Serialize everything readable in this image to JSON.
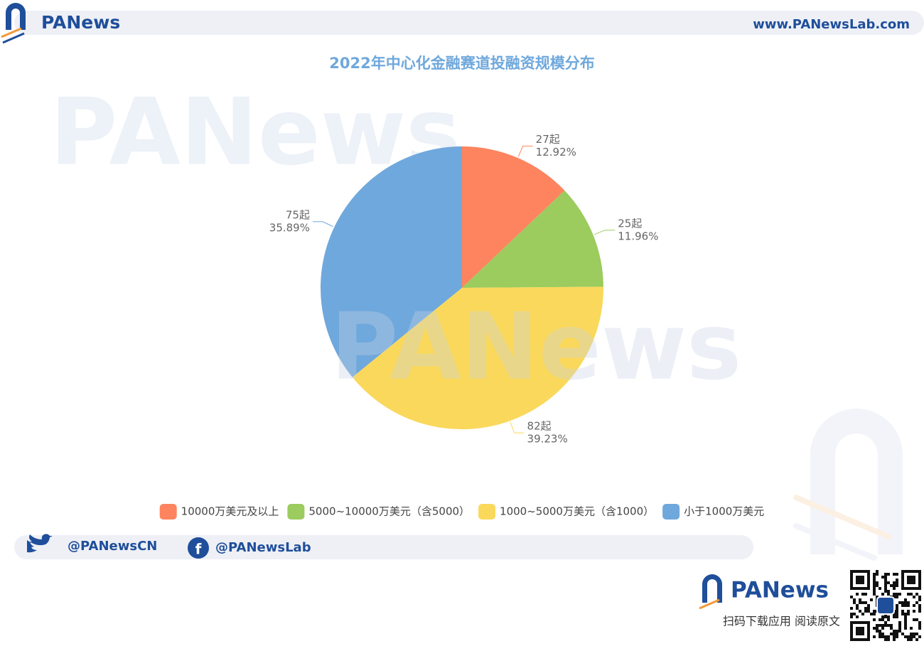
{
  "page": {
    "header_logo": "PANews",
    "url": "www.PANewsLab.com",
    "watermark": "PANews",
    "twitter": "@PANewsCN",
    "facebook": "@PANewsLab",
    "footer_logo": "PANews",
    "footer_text": "扫码下载应用  阅读原文"
  },
  "chart_data": {
    "type": "pie",
    "title": "2022年中心化金融赛道投融资规模分布",
    "categories": [
      "10000万美元及以上",
      "5000~10000万美元（含5000）",
      "1000~5000万美元（含1000）",
      "小于1000万美元"
    ],
    "values": [
      27,
      25,
      82,
      75
    ],
    "value_labels": [
      "27起",
      "25起",
      "82起",
      "75起"
    ],
    "percents": [
      12.92,
      11.96,
      39.23,
      35.89
    ],
    "percent_labels": [
      "12.92%",
      "11.96%",
      "39.23%",
      "35.89%"
    ],
    "colors": [
      "#fd845f",
      "#9ccb5e",
      "#fad85b",
      "#6fa8dc"
    ],
    "legend": "bottom"
  }
}
